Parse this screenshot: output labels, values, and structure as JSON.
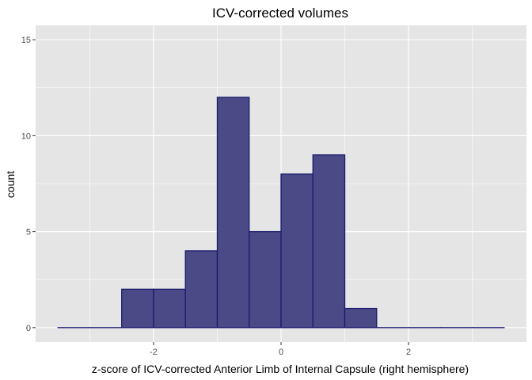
{
  "chart_data": {
    "type": "bar",
    "title": "ICV-corrected volumes",
    "xlabel": "z-score of ICV-corrected Anterior Limb of Internal Capsule (right hemisphere)",
    "ylabel": "count",
    "xlim": [
      -3.5,
      3.5
    ],
    "ylim": [
      0,
      15
    ],
    "x_ticks": [
      -2,
      0,
      2
    ],
    "x_tick_labels": [
      "-2",
      "0",
      "2"
    ],
    "y_ticks": [
      0,
      5,
      10,
      15
    ],
    "y_tick_labels": [
      "0",
      "5",
      "10",
      "15"
    ],
    "bin_width": 0.5,
    "bins": [
      {
        "x0": -3.5,
        "x1": -3.0,
        "count": 0
      },
      {
        "x0": -3.0,
        "x1": -2.5,
        "count": 0
      },
      {
        "x0": -2.5,
        "x1": -2.0,
        "count": 2
      },
      {
        "x0": -2.0,
        "x1": -1.5,
        "count": 2
      },
      {
        "x0": -1.5,
        "x1": -1.0,
        "count": 4
      },
      {
        "x0": -1.0,
        "x1": -0.5,
        "count": 12
      },
      {
        "x0": -0.5,
        "x1": 0.0,
        "count": 5
      },
      {
        "x0": 0.0,
        "x1": 0.5,
        "count": 8
      },
      {
        "x0": 0.5,
        "x1": 1.0,
        "count": 9
      },
      {
        "x0": 1.0,
        "x1": 1.5,
        "count": 1
      },
      {
        "x0": 1.5,
        "x1": 2.0,
        "count": 0
      },
      {
        "x0": 2.0,
        "x1": 2.5,
        "count": 0
      },
      {
        "x0": 2.5,
        "x1": 3.0,
        "count": 0
      },
      {
        "x0": 3.0,
        "x1": 3.5,
        "count": 0
      }
    ],
    "grid": true,
    "legend": "none",
    "colors": {
      "panel_background": "#e5e5e5",
      "grid_major": "#ffffff",
      "bar_fill": "#4b4a86",
      "bar_outline": "#1a1a6e"
    }
  }
}
